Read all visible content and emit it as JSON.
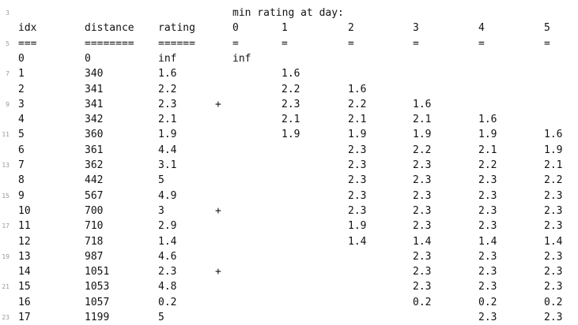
{
  "document": {
    "lines": [
      {
        "number": "3",
        "cells": [
          {
            "col": "c0",
            "text": "min rating at day:"
          }
        ]
      },
      {
        "number": "",
        "cells": [
          {
            "col": "idx",
            "text": "idx"
          },
          {
            "col": "dist",
            "text": "distance"
          },
          {
            "col": "rating",
            "text": "rating"
          },
          {
            "col": "c0",
            "text": "0"
          },
          {
            "col": "c1",
            "text": "1"
          },
          {
            "col": "c2",
            "text": "2"
          },
          {
            "col": "c3",
            "text": "3"
          },
          {
            "col": "c4",
            "text": "4"
          },
          {
            "col": "c5",
            "text": "5"
          }
        ]
      },
      {
        "number": "5",
        "cells": [
          {
            "col": "idx",
            "text": "==="
          },
          {
            "col": "dist",
            "text": "========"
          },
          {
            "col": "rating",
            "text": "======"
          },
          {
            "col": "c0",
            "text": "="
          },
          {
            "col": "c1",
            "text": "="
          },
          {
            "col": "c2",
            "text": "="
          },
          {
            "col": "c3",
            "text": "="
          },
          {
            "col": "c4",
            "text": "="
          },
          {
            "col": "c5",
            "text": "="
          }
        ]
      },
      {
        "number": "",
        "cells": [
          {
            "col": "idx",
            "text": "0"
          },
          {
            "col": "dist",
            "text": "0"
          },
          {
            "col": "rating",
            "text": "inf"
          },
          {
            "col": "c0",
            "text": "inf"
          }
        ]
      },
      {
        "number": "7",
        "cells": [
          {
            "col": "idx",
            "text": "1"
          },
          {
            "col": "dist",
            "text": "340"
          },
          {
            "col": "rating",
            "text": "1.6"
          },
          {
            "col": "c1",
            "text": "1.6"
          }
        ]
      },
      {
        "number": "",
        "cells": [
          {
            "col": "idx",
            "text": "2"
          },
          {
            "col": "dist",
            "text": "341"
          },
          {
            "col": "rating",
            "text": "2.2"
          },
          {
            "col": "c1",
            "text": "2.2"
          },
          {
            "col": "c2",
            "text": "1.6"
          }
        ]
      },
      {
        "number": "9",
        "cells": [
          {
            "col": "idx",
            "text": "3"
          },
          {
            "col": "dist",
            "text": "341"
          },
          {
            "col": "rating",
            "text": "2.3"
          },
          {
            "col": "plus",
            "text": "+"
          },
          {
            "col": "c1",
            "text": "2.3"
          },
          {
            "col": "c2",
            "text": "2.2"
          },
          {
            "col": "c3",
            "text": "1.6"
          }
        ]
      },
      {
        "number": "",
        "cells": [
          {
            "col": "idx",
            "text": "4"
          },
          {
            "col": "dist",
            "text": "342"
          },
          {
            "col": "rating",
            "text": "2.1"
          },
          {
            "col": "c1",
            "text": "2.1"
          },
          {
            "col": "c2",
            "text": "2.1"
          },
          {
            "col": "c3",
            "text": "2.1"
          },
          {
            "col": "c4",
            "text": "1.6"
          }
        ]
      },
      {
        "number": "11",
        "cells": [
          {
            "col": "idx",
            "text": "5"
          },
          {
            "col": "dist",
            "text": "360"
          },
          {
            "col": "rating",
            "text": "1.9"
          },
          {
            "col": "c1",
            "text": "1.9"
          },
          {
            "col": "c2",
            "text": "1.9"
          },
          {
            "col": "c3",
            "text": "1.9"
          },
          {
            "col": "c4",
            "text": "1.9"
          },
          {
            "col": "c5",
            "text": "1.6"
          }
        ]
      },
      {
        "number": "",
        "cells": [
          {
            "col": "idx",
            "text": "6"
          },
          {
            "col": "dist",
            "text": "361"
          },
          {
            "col": "rating",
            "text": "4.4"
          },
          {
            "col": "c2",
            "text": "2.3"
          },
          {
            "col": "c3",
            "text": "2.2"
          },
          {
            "col": "c4",
            "text": "2.1"
          },
          {
            "col": "c5",
            "text": "1.9"
          }
        ]
      },
      {
        "number": "13",
        "cells": [
          {
            "col": "idx",
            "text": "7"
          },
          {
            "col": "dist",
            "text": "362"
          },
          {
            "col": "rating",
            "text": "3.1"
          },
          {
            "col": "c2",
            "text": "2.3"
          },
          {
            "col": "c3",
            "text": "2.3"
          },
          {
            "col": "c4",
            "text": "2.2"
          },
          {
            "col": "c5",
            "text": "2.1"
          }
        ]
      },
      {
        "number": "",
        "cells": [
          {
            "col": "idx",
            "text": "8"
          },
          {
            "col": "dist",
            "text": "442"
          },
          {
            "col": "rating",
            "text": "5"
          },
          {
            "col": "c2",
            "text": "2.3"
          },
          {
            "col": "c3",
            "text": "2.3"
          },
          {
            "col": "c4",
            "text": "2.3"
          },
          {
            "col": "c5",
            "text": "2.2"
          }
        ]
      },
      {
        "number": "15",
        "cells": [
          {
            "col": "idx",
            "text": "9"
          },
          {
            "col": "dist",
            "text": "567"
          },
          {
            "col": "rating",
            "text": "4.9"
          },
          {
            "col": "c2",
            "text": "2.3"
          },
          {
            "col": "c3",
            "text": "2.3"
          },
          {
            "col": "c4",
            "text": "2.3"
          },
          {
            "col": "c5",
            "text": "2.3"
          }
        ]
      },
      {
        "number": "",
        "cells": [
          {
            "col": "idx",
            "text": "10"
          },
          {
            "col": "dist",
            "text": "700"
          },
          {
            "col": "rating",
            "text": "3"
          },
          {
            "col": "plus",
            "text": "+"
          },
          {
            "col": "c2",
            "text": "2.3"
          },
          {
            "col": "c3",
            "text": "2.3"
          },
          {
            "col": "c4",
            "text": "2.3"
          },
          {
            "col": "c5",
            "text": "2.3"
          }
        ]
      },
      {
        "number": "17",
        "cells": [
          {
            "col": "idx",
            "text": "11"
          },
          {
            "col": "dist",
            "text": "710"
          },
          {
            "col": "rating",
            "text": "2.9"
          },
          {
            "col": "c2",
            "text": "1.9"
          },
          {
            "col": "c3",
            "text": "2.3"
          },
          {
            "col": "c4",
            "text": "2.3"
          },
          {
            "col": "c5",
            "text": "2.3"
          }
        ]
      },
      {
        "number": "",
        "cells": [
          {
            "col": "idx",
            "text": "12"
          },
          {
            "col": "dist",
            "text": "718"
          },
          {
            "col": "rating",
            "text": "1.4"
          },
          {
            "col": "c2",
            "text": "1.4"
          },
          {
            "col": "c3",
            "text": "1.4"
          },
          {
            "col": "c4",
            "text": "1.4"
          },
          {
            "col": "c5",
            "text": "1.4"
          }
        ]
      },
      {
        "number": "19",
        "cells": [
          {
            "col": "idx",
            "text": "13"
          },
          {
            "col": "dist",
            "text": "987"
          },
          {
            "col": "rating",
            "text": "4.6"
          },
          {
            "col": "c3",
            "text": "2.3"
          },
          {
            "col": "c4",
            "text": "2.3"
          },
          {
            "col": "c5",
            "text": "2.3"
          }
        ]
      },
      {
        "number": "",
        "cells": [
          {
            "col": "idx",
            "text": "14"
          },
          {
            "col": "dist",
            "text": "1051"
          },
          {
            "col": "rating",
            "text": "2.3"
          },
          {
            "col": "plus",
            "text": "+"
          },
          {
            "col": "c3",
            "text": "2.3"
          },
          {
            "col": "c4",
            "text": "2.3"
          },
          {
            "col": "c5",
            "text": "2.3"
          }
        ]
      },
      {
        "number": "21",
        "cells": [
          {
            "col": "idx",
            "text": "15"
          },
          {
            "col": "dist",
            "text": "1053"
          },
          {
            "col": "rating",
            "text": "4.8"
          },
          {
            "col": "c3",
            "text": "2.3"
          },
          {
            "col": "c4",
            "text": "2.3"
          },
          {
            "col": "c5",
            "text": "2.3"
          }
        ]
      },
      {
        "number": "",
        "cells": [
          {
            "col": "idx",
            "text": "16"
          },
          {
            "col": "dist",
            "text": "1057"
          },
          {
            "col": "rating",
            "text": "0.2"
          },
          {
            "col": "c3",
            "text": "0.2"
          },
          {
            "col": "c4",
            "text": "0.2"
          },
          {
            "col": "c5",
            "text": "0.2"
          }
        ]
      },
      {
        "number": "23",
        "cells": [
          {
            "col": "idx",
            "text": "17"
          },
          {
            "col": "dist",
            "text": "1199"
          },
          {
            "col": "rating",
            "text": "5"
          },
          {
            "col": "c4",
            "text": "2.3"
          },
          {
            "col": "c5",
            "text": "2.3"
          }
        ]
      }
    ]
  }
}
